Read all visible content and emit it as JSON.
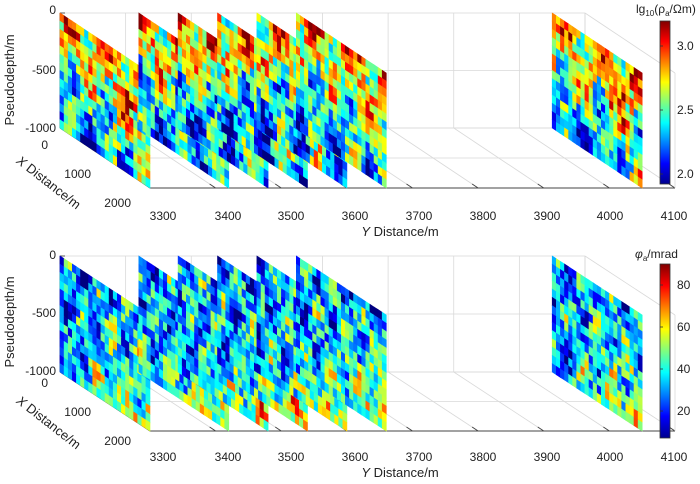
{
  "chart_data": [
    {
      "type": "heatmap",
      "panel": "apparent-resistivity",
      "title": "",
      "zlabel": "Pseudodepth/m",
      "z_ticks": [
        "0",
        "-500",
        "-1000"
      ],
      "xlabel_italic": "X",
      "xlabel_rest": " Distance/m",
      "x_ticks": [
        "0",
        "1000",
        "2000"
      ],
      "ylabel_italic": "Y",
      "ylabel_rest": " Distance/m",
      "y_ticks": [
        "3300",
        "3400",
        "3500",
        "3600",
        "3700",
        "3800",
        "3900",
        "4000",
        "4100"
      ],
      "profile_y_positions": [
        3300,
        3420,
        3480,
        3540,
        3600,
        3660,
        4050
      ],
      "colorbar": {
        "label_main": "lg",
        "label_sub": "10",
        "label_open": "(ρ",
        "label_sub2": "a",
        "label_rest": "/Ωm)",
        "ticks": [
          "3.0",
          "2.5",
          "2.0"
        ],
        "range": [
          1.9,
          3.3
        ]
      }
    },
    {
      "type": "heatmap",
      "panel": "phase",
      "title": "",
      "zlabel": "Pseudodepth/m",
      "z_ticks": [
        "0",
        "-500",
        "-1000"
      ],
      "xlabel_italic": "X",
      "xlabel_rest": " Distance/m",
      "x_ticks": [
        "0",
        "1000",
        "2000"
      ],
      "ylabel_italic": "Y",
      "ylabel_rest": " Distance/m",
      "y_ticks": [
        "3300",
        "3400",
        "3500",
        "3600",
        "3700",
        "3800",
        "3900",
        "4000",
        "4100"
      ],
      "profile_y_positions": [
        3300,
        3420,
        3480,
        3540,
        3600,
        3660,
        4050
      ],
      "colorbar": {
        "label_main": "φ",
        "label_sub": "a",
        "label_rest": "/mrad",
        "ticks": [
          "80",
          "60",
          "40",
          "20"
        ],
        "range": [
          8,
          90
        ]
      }
    }
  ]
}
